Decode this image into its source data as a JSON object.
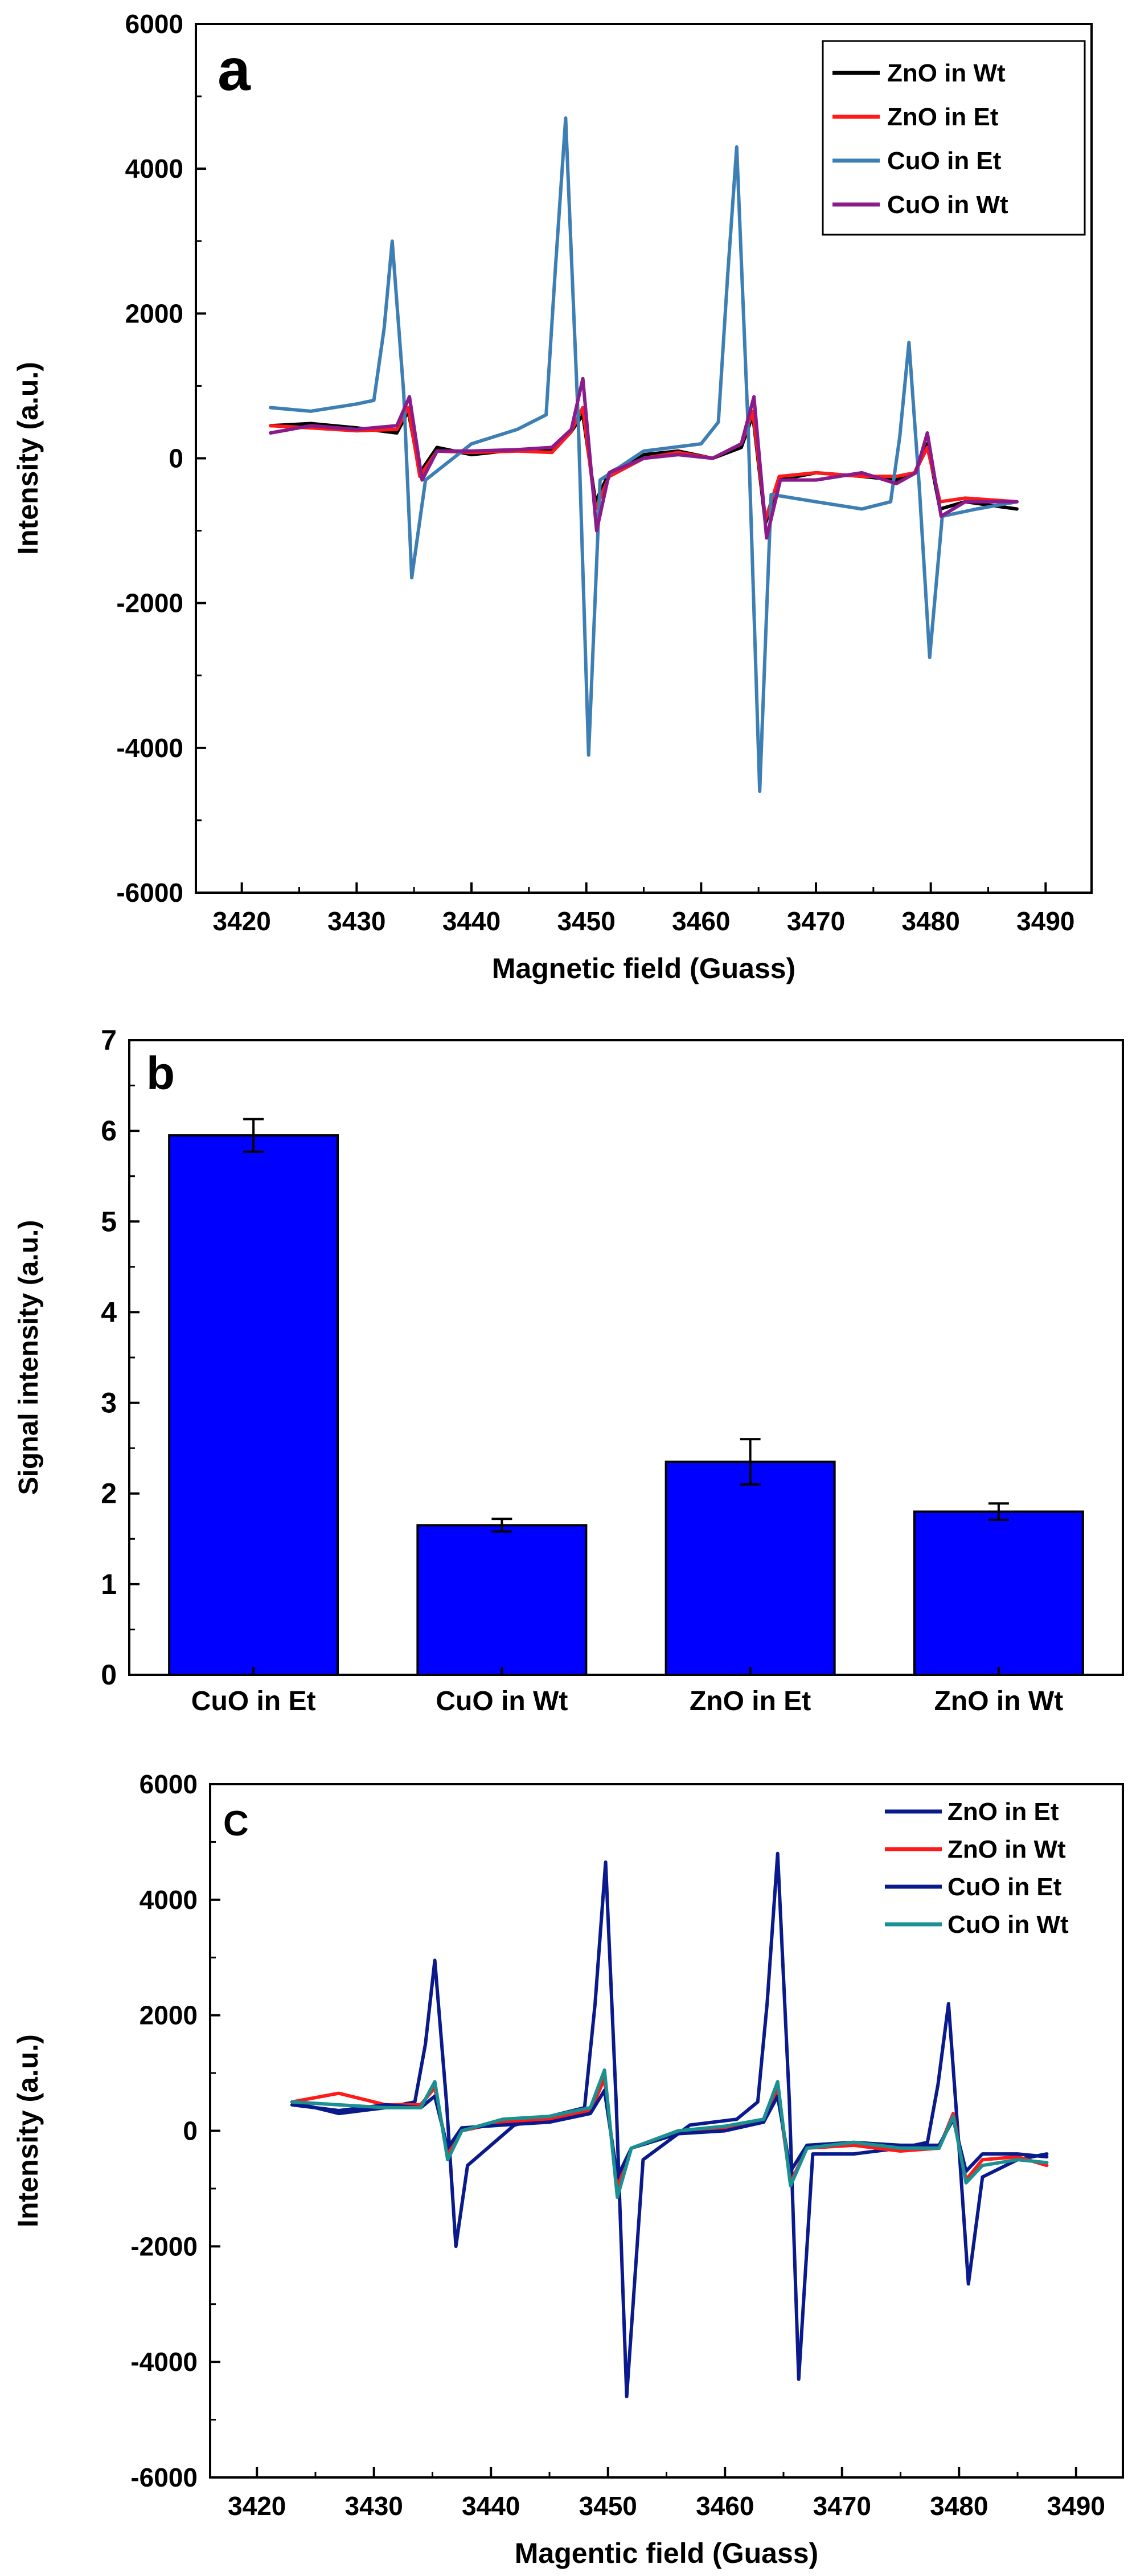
{
  "colors": {
    "background": "#ffffff",
    "axis": "#000000",
    "black": "#000000",
    "red": "#ff1a1a",
    "steel_blue": "#3d7fb5",
    "purple": "#8b1a8b",
    "bar_blue": "#0000ff",
    "navy": "#0a1a8c",
    "teal": "#1a9090"
  },
  "chart_data": [
    {
      "panel_label": "a",
      "type": "line",
      "title": "",
      "xlabel": "Magnetic field (Guass)",
      "ylabel": "Intensity (a.u.)",
      "xlim": [
        3416,
        3494
      ],
      "ylim": [
        -6000,
        6000
      ],
      "xticks": [
        3420,
        3430,
        3440,
        3450,
        3460,
        3470,
        3480,
        3490
      ],
      "yticks": [
        -6000,
        -4000,
        -2000,
        0,
        2000,
        4000,
        6000
      ],
      "legend_position": "top-right",
      "series": [
        {
          "name": "ZnO in Wt",
          "color": "#000000",
          "x": [
            3422.5,
            3426,
            3430,
            3433.5,
            3434.5,
            3435.5,
            3437,
            3440,
            3444,
            3447,
            3448.6,
            3449.7,
            3450.8,
            3452,
            3455,
            3458,
            3461,
            3463.5,
            3464.5,
            3465.6,
            3466.8,
            3470,
            3474,
            3477,
            3478.6,
            3479.7,
            3480.8,
            3483,
            3487.5
          ],
          "y": [
            450,
            480,
            420,
            350,
            650,
            -200,
            150,
            50,
            120,
            100,
            350,
            600,
            -600,
            -200,
            50,
            100,
            0,
            150,
            600,
            -900,
            -300,
            -200,
            -250,
            -300,
            -200,
            200,
            -700,
            -600,
            -700
          ]
        },
        {
          "name": "ZnO in Et",
          "color": "#ff1a1a",
          "x": [
            3422.5,
            3426,
            3430,
            3433.5,
            3434.5,
            3435.5,
            3437,
            3440,
            3444,
            3447,
            3448.6,
            3449.7,
            3450.8,
            3452,
            3455,
            3458,
            3461,
            3463.5,
            3464.5,
            3465.6,
            3466.8,
            3470,
            3474,
            3477,
            3478.6,
            3479.7,
            3480.8,
            3483,
            3487.5
          ],
          "y": [
            450,
            420,
            380,
            400,
            700,
            -250,
            100,
            80,
            100,
            80,
            350,
            700,
            -700,
            -250,
            0,
            80,
            0,
            200,
            650,
            -850,
            -250,
            -200,
            -250,
            -250,
            -200,
            150,
            -600,
            -550,
            -600
          ]
        },
        {
          "name": "CuO in Et",
          "color": "#3d7fb5",
          "x": [
            3422.5,
            3426,
            3430,
            3431.5,
            3432.4,
            3433.1,
            3434.1,
            3434.8,
            3436,
            3440,
            3444,
            3446.5,
            3447.3,
            3448.2,
            3449.3,
            3450.2,
            3451.2,
            3455,
            3460,
            3461.5,
            3462.3,
            3463.1,
            3464.1,
            3465.1,
            3466.1,
            3470,
            3474,
            3476.5,
            3477.3,
            3478.1,
            3479,
            3479.9,
            3481,
            3484,
            3487.5
          ],
          "y": [
            700,
            650,
            750,
            800,
            1800,
            3000,
            900,
            -1650,
            -300,
            200,
            400,
            600,
            2600,
            4700,
            500,
            -4100,
            -300,
            100,
            200,
            500,
            2500,
            4300,
            400,
            -4600,
            -500,
            -600,
            -700,
            -600,
            300,
            1600,
            -400,
            -2750,
            -800,
            -700,
            -600
          ]
        },
        {
          "name": "CuO in Wt",
          "color": "#8b1a8b",
          "x": [
            3422.5,
            3426,
            3430,
            3433.5,
            3434.6,
            3435.7,
            3437,
            3440,
            3444,
            3447,
            3448.7,
            3449.7,
            3450.9,
            3452,
            3455,
            3458,
            3461,
            3463.5,
            3464.6,
            3465.7,
            3466.9,
            3470,
            3474,
            3477,
            3478.7,
            3479.7,
            3480.9,
            3483,
            3487.5
          ],
          "y": [
            350,
            450,
            400,
            450,
            850,
            -300,
            100,
            100,
            120,
            150,
            400,
            1100,
            -1000,
            -200,
            0,
            50,
            0,
            200,
            850,
            -1100,
            -300,
            -300,
            -200,
            -350,
            -200,
            350,
            -800,
            -600,
            -600
          ]
        }
      ]
    },
    {
      "panel_label": "b",
      "type": "bar",
      "title": "",
      "xlabel": "",
      "ylabel": "Signal intensity (a.u.)",
      "ylim": [
        0,
        7
      ],
      "yticks": [
        0,
        1,
        2,
        3,
        4,
        5,
        6,
        7
      ],
      "categories": [
        "CuO in Et",
        "CuO in Wt",
        "ZnO in Et",
        "ZnO in Wt"
      ],
      "values": [
        5.95,
        1.65,
        2.35,
        1.8
      ],
      "errors": [
        0.18,
        0.07,
        0.25,
        0.09
      ]
    },
    {
      "panel_label": "C",
      "type": "line",
      "title": "",
      "xlabel": "Magentic field (Guass)",
      "ylabel": "Intensity (a.u.)",
      "xlim": [
        3416,
        3494
      ],
      "ylim": [
        -6000,
        6000
      ],
      "xticks": [
        3420,
        3430,
        3440,
        3450,
        3460,
        3470,
        3480,
        3490
      ],
      "yticks": [
        -6000,
        -4000,
        -2000,
        0,
        2000,
        4000,
        6000
      ],
      "legend_position": "top-right",
      "series": [
        {
          "name": "ZnO in Et",
          "color": "#0a1a8c",
          "x": [
            3423,
            3427,
            3431,
            3433.5,
            3434.4,
            3435.2,
            3436.2,
            3437,
            3438,
            3442,
            3446,
            3448,
            3448.9,
            3449.8,
            3450.7,
            3451.6,
            3453,
            3457,
            3461,
            3462.8,
            3463.6,
            3464.5,
            3465.5,
            3466.3,
            3467.5,
            3471,
            3475,
            3477.3,
            3478.2,
            3479.1,
            3480,
            3480.8,
            3482,
            3485,
            3487.5
          ],
          "y": [
            500,
            300,
            400,
            500,
            1500,
            2950,
            500,
            -2000,
            -600,
            100,
            300,
            400,
            2200,
            4650,
            500,
            -4600,
            -500,
            100,
            200,
            500,
            2200,
            4800,
            500,
            -4300,
            -400,
            -400,
            -300,
            -200,
            800,
            2200,
            -300,
            -2650,
            -800,
            -500,
            -400
          ]
        },
        {
          "name": "ZnO in Wt",
          "color": "#ff1a1a",
          "x": [
            3423,
            3427,
            3431,
            3434,
            3435.2,
            3436.3,
            3437.5,
            3441,
            3445,
            3448.5,
            3449.7,
            3450.8,
            3452,
            3456,
            3460,
            3463.3,
            3464.5,
            3465.6,
            3467,
            3471,
            3475,
            3478.3,
            3479.5,
            3480.6,
            3482,
            3485,
            3487.5
          ],
          "y": [
            500,
            650,
            450,
            450,
            750,
            -400,
            0,
            150,
            200,
            350,
            900,
            -1000,
            -300,
            0,
            50,
            200,
            700,
            -900,
            -300,
            -250,
            -350,
            -300,
            300,
            -850,
            -500,
            -450,
            -600
          ]
        },
        {
          "name": "CuO in Et",
          "color": "#0a1a8c",
          "x": [
            3423,
            3427,
            3431,
            3434,
            3435.2,
            3436.3,
            3437.5,
            3441,
            3445,
            3448.5,
            3449.7,
            3450.8,
            3452,
            3456,
            3460,
            3463.3,
            3464.5,
            3465.6,
            3467,
            3471,
            3475,
            3478.3,
            3479.5,
            3480.6,
            3482,
            3485,
            3487.5
          ],
          "y": [
            450,
            350,
            450,
            400,
            600,
            -300,
            50,
            100,
            150,
            300,
            700,
            -800,
            -300,
            -50,
            0,
            150,
            600,
            -700,
            -250,
            -200,
            -250,
            -250,
            200,
            -700,
            -400,
            -400,
            -450
          ]
        },
        {
          "name": "CuO in Wt",
          "color": "#1a9090",
          "x": [
            3423,
            3427,
            3431,
            3434,
            3435.2,
            3436.3,
            3437.5,
            3441,
            3445,
            3448.5,
            3449.7,
            3450.8,
            3452,
            3456,
            3460,
            3463.3,
            3464.5,
            3465.6,
            3467,
            3471,
            3475,
            3478.3,
            3479.5,
            3480.6,
            3482,
            3485,
            3487.5
          ],
          "y": [
            500,
            450,
            400,
            400,
            850,
            -500,
            0,
            200,
            250,
            400,
            1050,
            -1150,
            -300,
            0,
            80,
            200,
            850,
            -950,
            -300,
            -200,
            -300,
            -300,
            250,
            -900,
            -600,
            -500,
            -550
          ]
        }
      ]
    }
  ]
}
